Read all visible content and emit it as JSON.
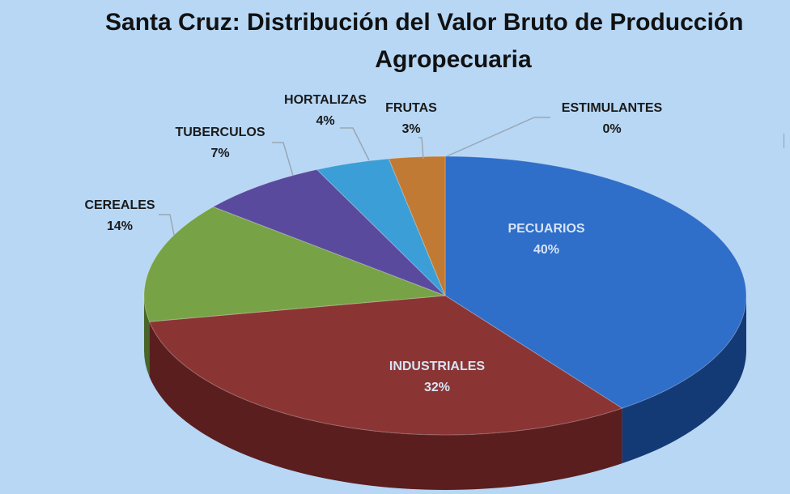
{
  "chart_data": {
    "type": "pie",
    "title_line1": "Santa Cruz: Distribución del Valor Bruto de Producción",
    "title_line2": "Agropecuaria",
    "slices": [
      {
        "label": "PECUARIOS",
        "value": 40,
        "value_label": "40%",
        "color": "#2f6ec9",
        "side": "#143a75"
      },
      {
        "label": "INDUSTRIALES",
        "value": 32,
        "value_label": "32%",
        "color": "#8a3534",
        "side": "#5a1e1f"
      },
      {
        "label": "CEREALES",
        "value": 14,
        "value_label": "14%",
        "color": "#77a346",
        "side": "#48662a"
      },
      {
        "label": "TUBERCULOS",
        "value": 7,
        "value_label": "7%",
        "color": "#5a4a9e",
        "side": "#352a63"
      },
      {
        "label": "HORTALIZAS",
        "value": 4,
        "value_label": "4%",
        "color": "#3b9ed6",
        "side": "#21628a"
      },
      {
        "label": "FRUTAS",
        "value": 3,
        "value_label": "3%",
        "color": "#c07a33",
        "side": "#7a4b1c"
      },
      {
        "label": "ESTIMULANTES",
        "value": 0,
        "value_label": "0%",
        "color": "#6b6b6b",
        "side": "#444444"
      }
    ]
  }
}
